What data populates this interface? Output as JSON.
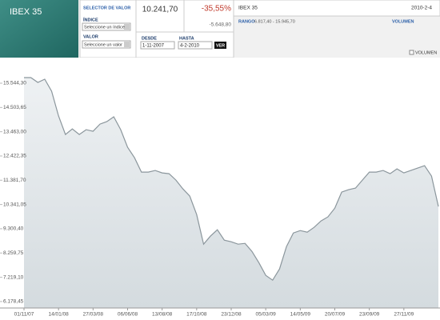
{
  "header": {
    "index_name": "IBEX 35",
    "selector_title": "SELECTOR DE VALOR",
    "index_label": "ÍNDICE",
    "index_select": "Seleccione un índice",
    "value_label": "VALOR",
    "value_select": "Seleccione un valor",
    "last_value": "10.241,70",
    "change_pct": "-35,55%",
    "change_abs": "-5.648,80",
    "from_label": "DESDE",
    "from_date": "1-11-2007",
    "to_label": "HASTA",
    "to_date": "4-2-2010",
    "go_button": "VER",
    "info_name": "IBEX 35",
    "info_date": "2010-2-4",
    "range_label": "RANGO",
    "range_value": "6.817,40 - 15.945,70",
    "volume_label": "VOLUMEN",
    "volume_checkbox": "VOLUMEN"
  },
  "chart_data": {
    "type": "area",
    "color": "#8b969c",
    "fill": "#dce2e5",
    "grid": false,
    "xlim": [
      0,
      60
    ],
    "xticks": [
      {
        "value": 0,
        "label": "01/11/07"
      },
      {
        "value": 5,
        "label": "14/01/08"
      },
      {
        "value": 10,
        "label": "27/03/08"
      },
      {
        "value": 15,
        "label": "06/06/08"
      },
      {
        "value": 20,
        "label": "13/08/08"
      },
      {
        "value": 25,
        "label": "17/10/08"
      },
      {
        "value": 30,
        "label": "23/12/08"
      },
      {
        "value": 35,
        "label": "05/03/09"
      },
      {
        "value": 40,
        "label": "14/05/09"
      },
      {
        "value": 45,
        "label": "20/07/09"
      },
      {
        "value": 50,
        "label": "23/09/09"
      },
      {
        "value": 55,
        "label": "27/11/09"
      }
    ],
    "ylim": [
      5900,
      16540
    ],
    "yticks": [
      {
        "value": 6178.45,
        "label": "6.178,45"
      },
      {
        "value": 7219.1,
        "label": "7.219,10"
      },
      {
        "value": 8259.75,
        "label": "8.259,75"
      },
      {
        "value": 9300.4,
        "label": "9.300,40"
      },
      {
        "value": 10341.05,
        "label": "10.341,05"
      },
      {
        "value": 11381.7,
        "label": "11.381,70"
      },
      {
        "value": 12422.35,
        "label": "12.422,35"
      },
      {
        "value": 13463,
        "label": "13.463,00"
      },
      {
        "value": 14503.65,
        "label": "14.503,65"
      },
      {
        "value": 15544.3,
        "label": "15.544,30"
      }
    ],
    "values": [
      15785,
      15785,
      15579,
      15716,
      15200,
      14136,
      13346,
      13586,
      13346,
      13552,
      13483,
      13792,
      13896,
      14102,
      13552,
      12796,
      12350,
      11731,
      11731,
      11800,
      11697,
      11663,
      11388,
      11010,
      10701,
      9911,
      8640,
      8984,
      9258,
      8812,
      8743,
      8640,
      8674,
      8330,
      7850,
      7300,
      7094,
      7575,
      8537,
      9121,
      9224,
      9155,
      9361,
      9636,
      9808,
      10185,
      10872,
      10975,
      11044,
      11388,
      11731,
      11731,
      11800,
      11663,
      11869,
      11697,
      11800,
      11903,
      12006,
      11559,
      10254
    ]
  }
}
